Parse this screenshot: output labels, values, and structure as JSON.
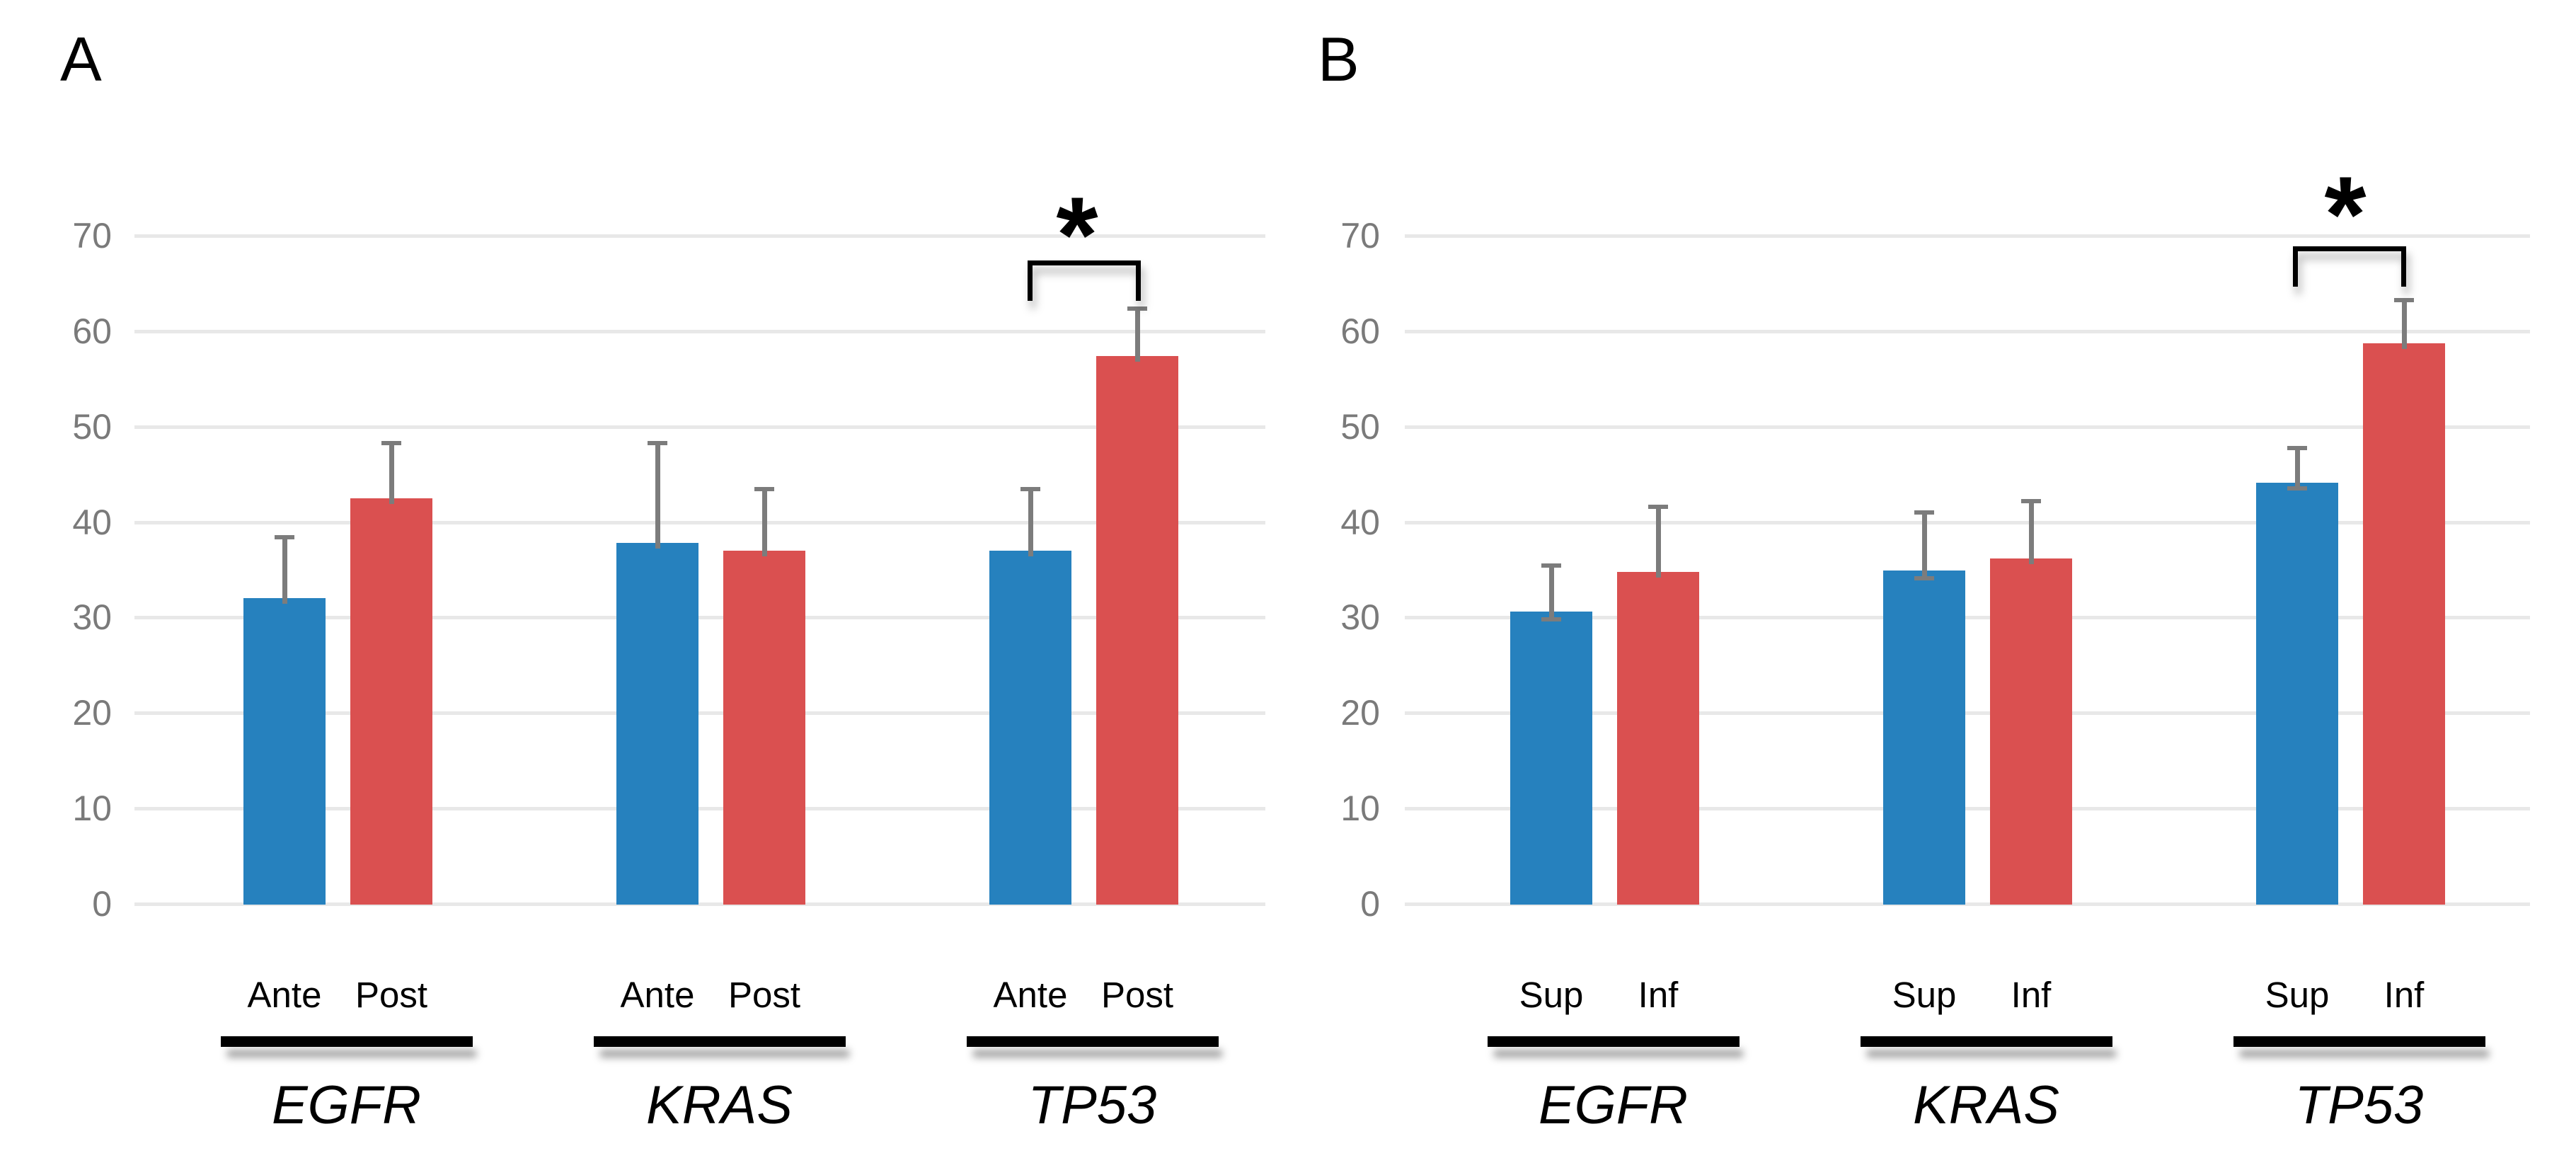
{
  "colors": {
    "series_blue": "#2681BE",
    "series_red": "#DA5050",
    "error_bar": "#7C7C7C",
    "gridline": "#E8E8E8",
    "tick_text": "#7A7A7A",
    "annotation": "#000000"
  },
  "chart_data": [
    {
      "type": "bar",
      "panel_label": "A",
      "title": "",
      "xlabel": "",
      "ylabel": "",
      "categories": [
        "EGFR",
        "KRAS",
        "TP53"
      ],
      "series": [
        {
          "name": "Ante",
          "color": "#2681BE",
          "values": [
            32.0,
            37.8,
            37.0
          ],
          "err_up": [
            6.6,
            10.7,
            6.7
          ],
          "err_down": [
            0,
            0,
            0
          ]
        },
        {
          "name": "Post",
          "color": "#DA5050",
          "values": [
            42.5,
            37.0,
            57.4
          ],
          "err_up": [
            6.0,
            6.7,
            5.2
          ],
          "err_down": [
            0,
            0,
            0
          ]
        }
      ],
      "ylim": [
        0,
        70
      ],
      "yticks": [
        0,
        10,
        20,
        30,
        40,
        50,
        60,
        70
      ],
      "grid": true,
      "legend_position": "none",
      "significance": {
        "category": "TP53",
        "label": "*"
      }
    },
    {
      "type": "bar",
      "panel_label": "B",
      "title": "",
      "xlabel": "",
      "ylabel": "",
      "categories": [
        "EGFR",
        "KRAS",
        "TP53"
      ],
      "series": [
        {
          "name": "Sup",
          "color": "#2681BE",
          "values": [
            30.6,
            34.9,
            44.1
          ],
          "err_up": [
            5.1,
            6.3,
            3.9
          ],
          "err_down": [
            1.0,
            1.0,
            0.8
          ]
        },
        {
          "name": "Inf",
          "color": "#DA5050",
          "values": [
            34.8,
            36.2,
            58.7
          ],
          "err_up": [
            7.0,
            6.2,
            4.8
          ],
          "err_down": [
            0,
            0,
            0
          ]
        }
      ],
      "ylim": [
        0,
        70
      ],
      "yticks": [
        0,
        10,
        20,
        30,
        40,
        50,
        60,
        70
      ],
      "grid": true,
      "legend_position": "none",
      "significance": {
        "category": "TP53",
        "label": "*"
      }
    }
  ]
}
